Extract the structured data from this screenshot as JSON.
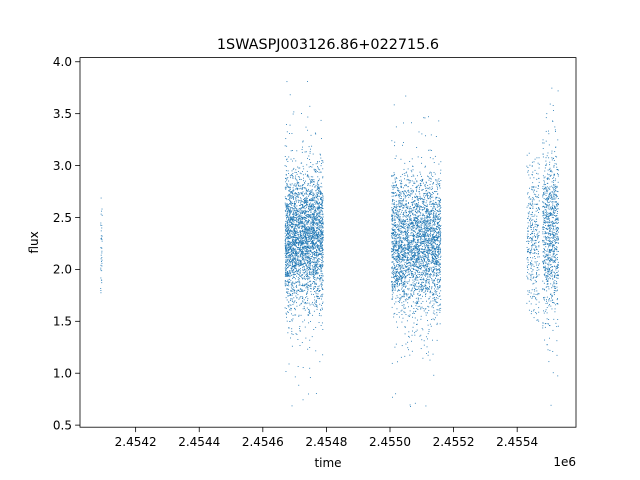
{
  "chart_data": {
    "type": "scatter",
    "title": "1SWASPJ003126.86+022715.6",
    "xlabel": "time",
    "ylabel": "flux",
    "x_offset_label": "1e6",
    "xlim": [
      2454025,
      2455585
    ],
    "ylim": [
      0.48,
      4.04
    ],
    "x_ticks": [
      2454200,
      2454400,
      2454600,
      2454800,
      2455000,
      2455200,
      2455400
    ],
    "x_tick_labels": [
      "2.4542",
      "2.4544",
      "2.4546",
      "2.4548",
      "2.4550",
      "2.4552",
      "2.4554"
    ],
    "y_ticks": [
      0.5,
      1.0,
      1.5,
      2.0,
      2.5,
      3.0,
      3.5,
      4.0
    ],
    "y_tick_labels": [
      "0.5",
      "1.0",
      "1.5",
      "2.0",
      "2.5",
      "3.0",
      "3.5",
      "4.0"
    ],
    "grid": false,
    "marker_color": "#1f77b4",
    "clusters": [
      {
        "x_range": [
          2454090,
          2454095
        ],
        "y_center": 2.2,
        "y_spread": 0.25,
        "n_points": 40,
        "y_min": 1.68,
        "y_max": 2.87
      },
      {
        "x_range": [
          2454670,
          2454790
        ],
        "y_center": 2.3,
        "y_spread": 0.32,
        "n_points": 3200,
        "y_min": 0.68,
        "y_max": 3.88
      },
      {
        "x_range": [
          2455005,
          2455160
        ],
        "y_center": 2.25,
        "y_spread": 0.32,
        "n_points": 3200,
        "y_min": 0.63,
        "y_max": 3.85
      },
      {
        "x_range": [
          2455430,
          2455470
        ],
        "y_center": 2.3,
        "y_spread": 0.35,
        "n_points": 350,
        "y_min": 1.5,
        "y_max": 3.12
      },
      {
        "x_range": [
          2455480,
          2455530
        ],
        "y_center": 2.35,
        "y_spread": 0.38,
        "n_points": 900,
        "y_min": 0.65,
        "y_max": 3.83
      }
    ]
  }
}
